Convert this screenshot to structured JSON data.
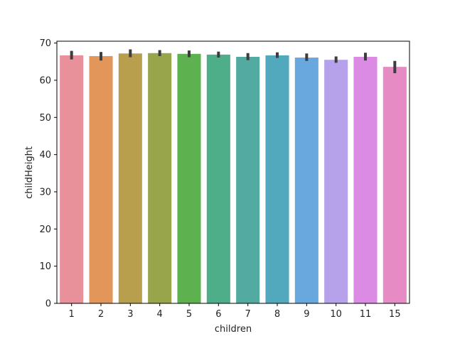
{
  "chart_data": {
    "type": "bar",
    "title": "",
    "xlabel": "children",
    "ylabel": "childHeight",
    "ylim": [
      0,
      70.5
    ],
    "yticks": [
      0,
      10,
      20,
      30,
      40,
      50,
      60,
      70
    ],
    "categories": [
      "1",
      "2",
      "3",
      "4",
      "5",
      "6",
      "7",
      "8",
      "9",
      "10",
      "11",
      "15"
    ],
    "values": [
      66.7,
      66.5,
      67.2,
      67.3,
      67.1,
      66.9,
      66.3,
      66.7,
      66.1,
      65.5,
      66.3,
      63.6
    ],
    "error_low": [
      65.6,
      65.3,
      66.2,
      66.5,
      66.2,
      66.1,
      65.4,
      66.0,
      65.2,
      64.7,
      65.3,
      61.9
    ],
    "error_high": [
      67.9,
      67.6,
      68.3,
      68.1,
      68.0,
      67.7,
      67.3,
      67.5,
      67.2,
      66.4,
      67.4,
      65.2
    ],
    "colors": [
      "#e8919b",
      "#e2965a",
      "#b79f4e",
      "#99a54b",
      "#5db14f",
      "#4fae8a",
      "#52aaa0",
      "#52a9bd",
      "#68a8df",
      "#b5a2eb",
      "#dc8be5",
      "#e68bc3"
    ],
    "error_bar_color": "#3d3d3d",
    "grid": false,
    "legend": "none"
  }
}
